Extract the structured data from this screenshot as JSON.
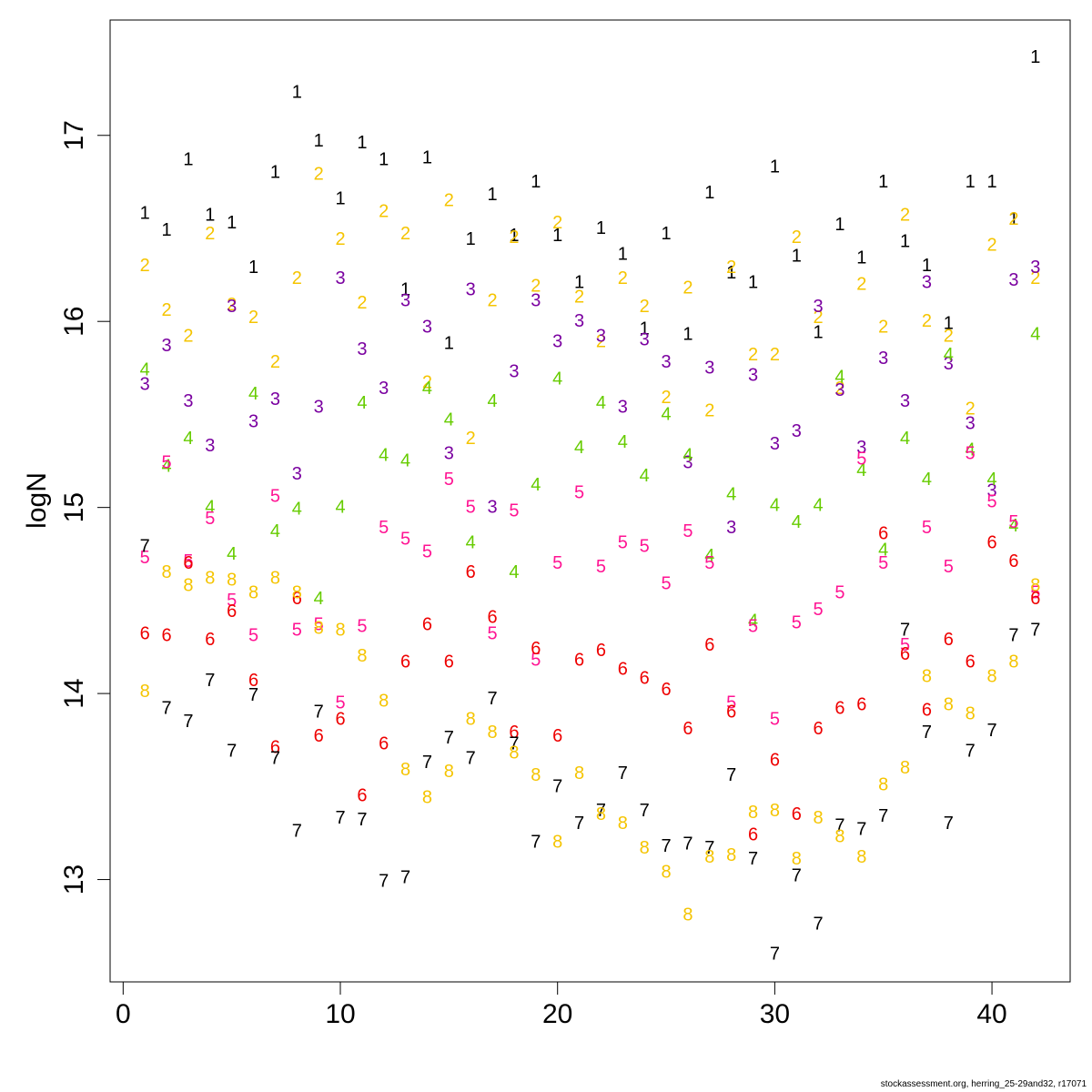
{
  "footer": "stockassessment.org, herring_25-29and32, r17071",
  "chart_data": {
    "type": "scatter",
    "xlabel": "",
    "ylabel": "logN",
    "xlim": [
      -0.6,
      43.6
    ],
    "ylim": [
      12.45,
      17.62
    ],
    "xticks": [
      0,
      10,
      20,
      30,
      40
    ],
    "yticks": [
      13,
      14,
      15,
      16,
      17
    ],
    "grid": false,
    "x": [
      1,
      2,
      3,
      4,
      5,
      6,
      7,
      8,
      9,
      10,
      11,
      12,
      13,
      14,
      15,
      16,
      17,
      18,
      19,
      20,
      21,
      22,
      23,
      24,
      25,
      26,
      27,
      28,
      29,
      30,
      31,
      32,
      33,
      34,
      35,
      36,
      37,
      38,
      39,
      40,
      41,
      42
    ],
    "series": [
      {
        "label": "1",
        "color": "#000000",
        "values": [
          16.58,
          16.49,
          16.87,
          16.57,
          16.53,
          16.29,
          16.8,
          17.23,
          16.97,
          16.66,
          16.96,
          16.87,
          16.17,
          16.88,
          15.88,
          16.44,
          16.68,
          16.46,
          16.75,
          16.46,
          16.21,
          16.5,
          16.36,
          15.96,
          16.47,
          15.93,
          16.69,
          16.26,
          16.21,
          16.83,
          16.35,
          15.94,
          16.52,
          16.34,
          16.75,
          16.43,
          16.3,
          15.99,
          16.75,
          16.75,
          16.55,
          17.42
        ]
      },
      {
        "label": "2",
        "color": "#f5c400",
        "values": [
          16.3,
          16.06,
          15.92,
          16.47,
          16.09,
          16.02,
          15.78,
          16.23,
          16.79,
          16.44,
          16.1,
          16.59,
          16.47,
          15.67,
          16.65,
          15.37,
          16.11,
          16.45,
          16.19,
          16.53,
          16.13,
          15.89,
          16.23,
          16.08,
          15.59,
          16.18,
          15.52,
          16.29,
          15.82,
          15.82,
          16.45,
          16.02,
          15.64,
          16.2,
          15.97,
          16.57,
          16.0,
          15.92,
          15.53,
          16.41,
          16.55,
          16.23
        ]
      },
      {
        "label": "3",
        "color": "#7a00a0",
        "values": [
          15.66,
          15.87,
          15.57,
          15.33,
          16.08,
          15.46,
          15.58,
          15.18,
          15.54,
          16.23,
          15.85,
          15.64,
          16.11,
          15.97,
          15.29,
          16.17,
          15.0,
          15.73,
          16.11,
          15.89,
          16.0,
          15.92,
          15.54,
          15.9,
          15.78,
          15.24,
          15.75,
          14.89,
          15.71,
          15.34,
          15.41,
          16.08,
          15.63,
          15.32,
          15.8,
          15.57,
          16.21,
          15.77,
          15.45,
          15.09,
          16.22,
          16.29
        ]
      },
      {
        "label": "4",
        "color": "#66cc00",
        "values": [
          15.74,
          15.22,
          15.37,
          15.0,
          14.75,
          15.61,
          14.87,
          14.99,
          14.51,
          15.0,
          15.56,
          15.28,
          15.25,
          15.64,
          15.47,
          14.81,
          15.57,
          14.65,
          15.12,
          15.69,
          15.32,
          15.56,
          15.35,
          15.17,
          15.5,
          15.28,
          14.74,
          15.07,
          14.39,
          15.01,
          14.92,
          15.01,
          15.7,
          15.2,
          14.77,
          15.37,
          15.15,
          15.82,
          15.31,
          15.15,
          14.9,
          15.93
        ]
      },
      {
        "label": "5",
        "color": "#ff1493",
        "values": [
          14.73,
          15.24,
          14.71,
          14.94,
          14.5,
          14.31,
          15.06,
          14.34,
          14.37,
          13.95,
          14.36,
          14.89,
          14.83,
          14.76,
          15.15,
          15.0,
          14.32,
          14.98,
          14.18,
          14.7,
          15.08,
          14.68,
          14.81,
          14.79,
          14.59,
          14.87,
          14.7,
          13.95,
          14.36,
          13.86,
          14.38,
          14.45,
          14.54,
          15.26,
          14.7,
          14.26,
          14.89,
          14.68,
          15.29,
          15.03,
          14.92,
          14.54
        ]
      },
      {
        "label": "6",
        "color": "#ee0000",
        "values": [
          14.32,
          14.31,
          14.7,
          14.29,
          14.44,
          14.07,
          13.71,
          14.51,
          13.77,
          13.86,
          13.45,
          13.73,
          14.17,
          14.37,
          14.17,
          14.65,
          14.41,
          13.79,
          14.24,
          13.77,
          14.18,
          14.23,
          14.13,
          14.08,
          14.02,
          13.81,
          14.26,
          13.9,
          13.24,
          13.64,
          13.35,
          13.81,
          13.92,
          13.94,
          14.86,
          14.21,
          13.91,
          14.29,
          14.17,
          14.81,
          14.71,
          14.51
        ]
      },
      {
        "label": "7",
        "color": "#000000",
        "values": [
          14.79,
          13.92,
          13.85,
          14.07,
          13.69,
          13.99,
          13.65,
          13.26,
          13.9,
          13.33,
          13.32,
          12.99,
          13.01,
          13.63,
          13.76,
          13.65,
          13.97,
          13.73,
          13.2,
          13.5,
          13.3,
          13.37,
          13.57,
          13.37,
          13.18,
          13.19,
          13.17,
          13.56,
          13.11,
          12.6,
          13.02,
          12.76,
          13.29,
          13.27,
          13.34,
          14.34,
          13.79,
          13.3,
          13.69,
          13.8,
          14.31,
          14.34
        ]
      },
      {
        "label": "8",
        "color": "#f5c400",
        "values": [
          14.01,
          14.65,
          14.58,
          14.62,
          14.61,
          14.54,
          14.62,
          14.54,
          14.35,
          14.34,
          14.2,
          13.96,
          13.59,
          13.44,
          13.58,
          13.86,
          13.79,
          13.68,
          13.56,
          13.2,
          13.57,
          13.35,
          13.3,
          13.17,
          13.04,
          12.81,
          13.12,
          13.13,
          13.36,
          13.37,
          13.11,
          13.33,
          13.23,
          13.12,
          13.51,
          13.6,
          14.09,
          13.94,
          13.89,
          14.09,
          14.17,
          14.58
        ]
      }
    ]
  }
}
